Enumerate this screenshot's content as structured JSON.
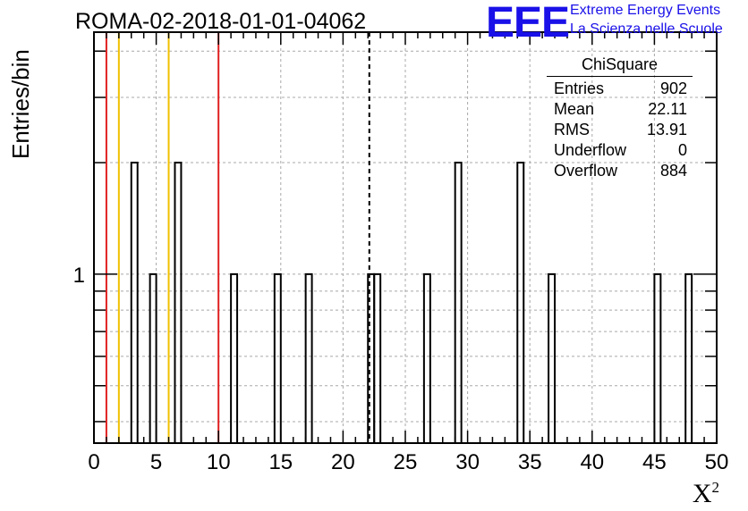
{
  "title": "ROMA-02-2018-01-01-04062",
  "logo": {
    "mark": "EEE",
    "line1": "Extreme Energy Events",
    "line2": "La Scienza nelle Scuole",
    "color": "#1a10e8"
  },
  "stats": {
    "title": "ChiSquare",
    "rows": [
      {
        "label": "Entries",
        "value": "902"
      },
      {
        "label": "Mean",
        "value": "22.11"
      },
      {
        "label": "RMS",
        "value": "13.91"
      },
      {
        "label": "Underflow",
        "value": "0"
      },
      {
        "label": "Overflow",
        "value": "884"
      }
    ]
  },
  "chart_data": {
    "type": "bar",
    "title": "ROMA-02-2018-01-01-04062",
    "xlabel": "X",
    "xlabel_sup": "2",
    "ylabel": "Entries/bin",
    "xlim": [
      0,
      50
    ],
    "ylim": [
      0.35,
      4.5
    ],
    "yscale": "log",
    "grid": true,
    "bin_width": 0.5,
    "x_ticks": [
      0,
      5,
      10,
      15,
      20,
      25,
      30,
      35,
      40,
      45,
      50
    ],
    "y_tick_labels": [
      {
        "value": 1,
        "label": "1"
      }
    ],
    "bins": [
      {
        "x": 3.0,
        "count": 2
      },
      {
        "x": 4.5,
        "count": 1
      },
      {
        "x": 6.5,
        "count": 2
      },
      {
        "x": 11.0,
        "count": 1
      },
      {
        "x": 14.5,
        "count": 1
      },
      {
        "x": 17.0,
        "count": 1
      },
      {
        "x": 22.0,
        "count": 1
      },
      {
        "x": 22.5,
        "count": 1
      },
      {
        "x": 26.5,
        "count": 1
      },
      {
        "x": 29.0,
        "count": 2
      },
      {
        "x": 34.0,
        "count": 2
      },
      {
        "x": 36.5,
        "count": 1
      },
      {
        "x": 45.0,
        "count": 1
      },
      {
        "x": 47.5,
        "count": 1
      }
    ],
    "vertical_lines": [
      {
        "x": 1.0,
        "color": "#e02020",
        "style": "solid"
      },
      {
        "x": 2.0,
        "color": "#f0c000",
        "style": "solid"
      },
      {
        "x": 6.0,
        "color": "#f0c000",
        "style": "solid"
      },
      {
        "x": 10.0,
        "color": "#e02020",
        "style": "solid"
      },
      {
        "x": 22.11,
        "color": "#000000",
        "style": "dashed"
      }
    ]
  }
}
